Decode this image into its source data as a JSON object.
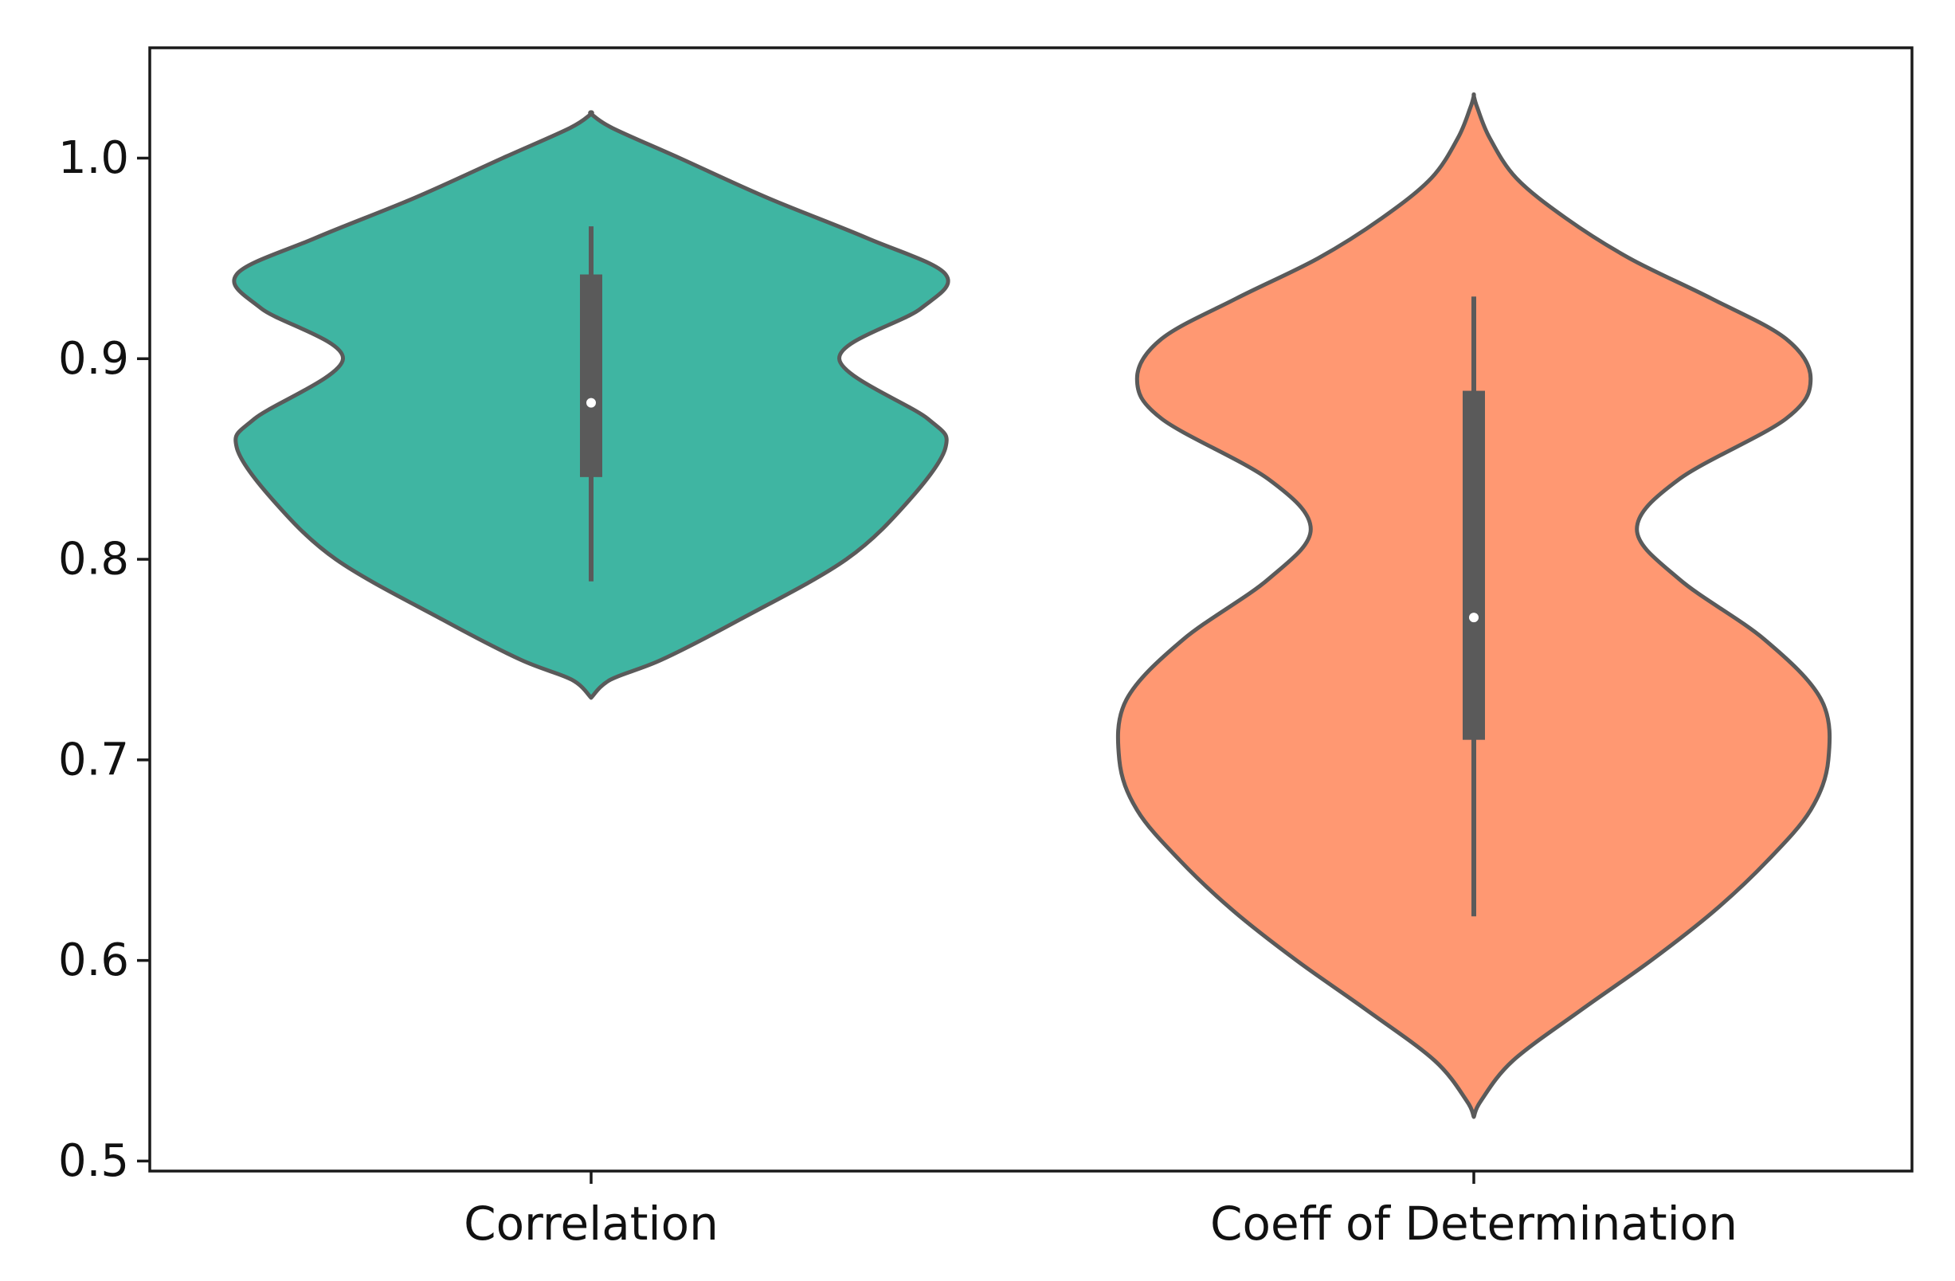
{
  "chart_data": {
    "type": "violin",
    "title": "",
    "xlabel": "",
    "ylabel": "",
    "ylim": [
      0.495,
      1.055
    ],
    "yticks": [
      0.5,
      0.6,
      0.7,
      0.8,
      0.9,
      1.0
    ],
    "ytick_labels": [
      "0.5",
      "0.6",
      "0.7",
      "0.8",
      "0.9",
      "1.0"
    ],
    "grid": false,
    "legend": "none",
    "edge_color": "#5a5a5a",
    "categories": [
      "Correlation",
      "Coeff of Determination"
    ],
    "violins": [
      {
        "name": "Correlation",
        "color": "#3fb5a2",
        "min": 0.789,
        "q1": 0.841,
        "median": 0.878,
        "q3": 0.942,
        "max": 0.966,
        "kde_y": [
          0.731,
          0.74,
          0.75,
          0.77,
          0.8,
          0.83,
          0.856,
          0.87,
          0.9,
          0.925,
          0.942,
          0.96,
          0.98,
          1.0,
          1.015,
          1.022
        ],
        "kde_w": [
          0.0,
          0.055,
          0.2,
          0.42,
          0.72,
          0.9,
          1.0,
          0.95,
          0.7,
          0.93,
          1.0,
          0.78,
          0.5,
          0.25,
          0.06,
          0.0
        ]
      },
      {
        "name": "Coeff of Determination",
        "color": "#ff9872",
        "min": 0.622,
        "q1": 0.71,
        "median": 0.771,
        "q3": 0.884,
        "max": 0.931,
        "kde_y": [
          0.522,
          0.53,
          0.55,
          0.575,
          0.6,
          0.625,
          0.65,
          0.675,
          0.7,
          0.73,
          0.76,
          0.79,
          0.815,
          0.84,
          0.87,
          0.89,
          0.91,
          0.93,
          0.95,
          0.97,
          0.99,
          1.01,
          1.025,
          1.031
        ],
        "kde_w": [
          0.0,
          0.02,
          0.11,
          0.3,
          0.5,
          0.68,
          0.83,
          0.95,
          1.0,
          0.98,
          0.82,
          0.58,
          0.46,
          0.58,
          0.88,
          0.95,
          0.88,
          0.67,
          0.44,
          0.26,
          0.12,
          0.045,
          0.01,
          0.0
        ]
      }
    ]
  }
}
